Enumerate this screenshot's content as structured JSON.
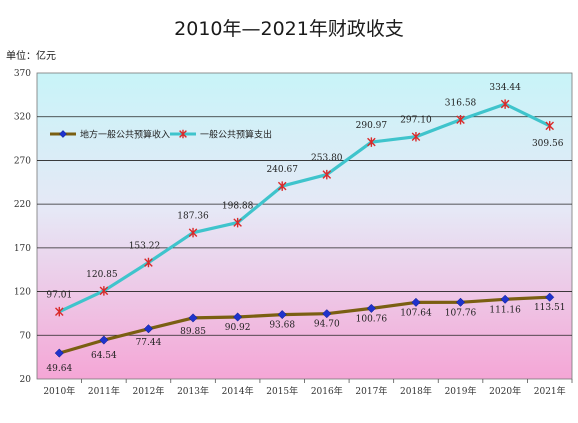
{
  "chart_data": {
    "type": "line",
    "title": "2010年—2021年财政收支",
    "unit_label": "单位：亿元",
    "categories": [
      "2010年",
      "2011年",
      "2012年",
      "2013年",
      "2014年",
      "2015年",
      "2016年",
      "2017年",
      "2018年",
      "2019年",
      "2020年",
      "2021年"
    ],
    "ylim": [
      20,
      370
    ],
    "yticks": [
      20,
      70,
      120,
      170,
      220,
      270,
      320,
      370
    ],
    "grid": true,
    "legend_position": "upper-left",
    "series": [
      {
        "name": "地方一般公共预算收入",
        "color": "#7a5f12",
        "marker": "diamond",
        "marker_color": "#1f33cc",
        "values": [
          49.64,
          64.54,
          77.44,
          89.85,
          90.92,
          93.68,
          94.7,
          100.76,
          107.64,
          107.76,
          111.16,
          113.51
        ],
        "labels": [
          "49.64",
          "64.54",
          "77.44",
          "89.85",
          "90.92",
          "93.68",
          "94.70",
          "100.76",
          "107.64",
          "107.76",
          "111.16",
          "113.51"
        ]
      },
      {
        "name": "一般公共预算支出",
        "color": "#3fc4cc",
        "marker": "star",
        "marker_color": "#d92a2a",
        "values": [
          97.01,
          120.85,
          153.22,
          187.36,
          198.88,
          240.67,
          253.8,
          290.97,
          297.1,
          316.58,
          334.44,
          309.56
        ],
        "labels": [
          "97.01",
          "120.85",
          "153.22",
          "187.36",
          "198.88",
          "240.67",
          "253.80",
          "290.97",
          "297.10",
          "316.58",
          "334.44",
          "309.56"
        ]
      }
    ]
  }
}
